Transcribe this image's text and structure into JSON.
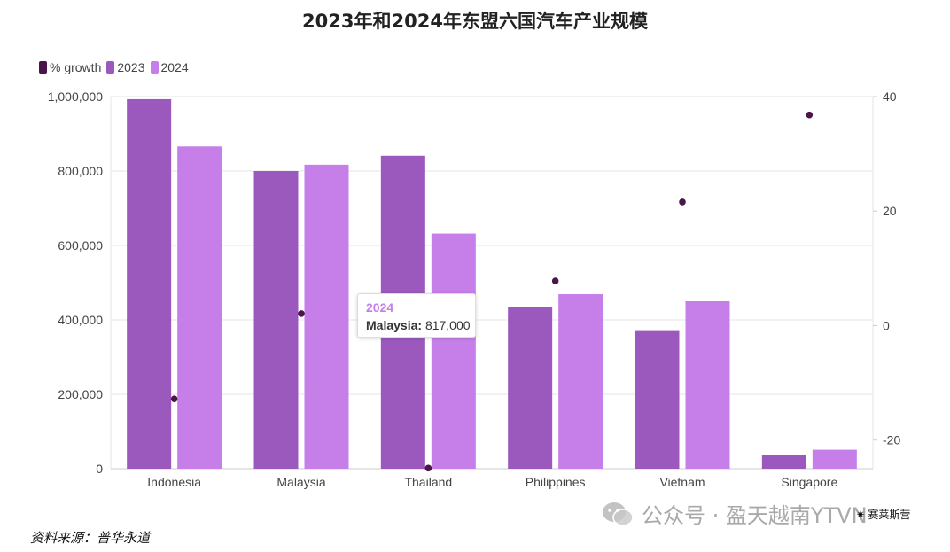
{
  "chart_data": {
    "type": "bar",
    "title": "2023年和2024年东盟六国汽车产业规模",
    "categories": [
      "Indonesia",
      "Malaysia",
      "Thailand",
      "Philippines",
      "Vietnam",
      "Singapore"
    ],
    "series": [
      {
        "name": "2023",
        "axis": "left",
        "color": "#9b59bd",
        "values": [
          993000,
          800000,
          841000,
          435000,
          370000,
          38000
        ]
      },
      {
        "name": "2024",
        "axis": "left",
        "color": "#c67fe8",
        "values": [
          866000,
          817000,
          632000,
          469000,
          450000,
          51000
        ]
      },
      {
        "name": "% growth",
        "axis": "right",
        "mark": "point",
        "color": "#4a1548",
        "values": [
          -12.8,
          2.1,
          -24.9,
          7.8,
          21.6,
          36.8
        ]
      }
    ],
    "left_axis": {
      "ylim": [
        0,
        1000000
      ],
      "ticks": [
        "0",
        "200,000",
        "400,000",
        "600,000",
        "800,000",
        "1,000,000"
      ],
      "tick_values": [
        0,
        200000,
        400000,
        600000,
        800000,
        1000000
      ]
    },
    "right_axis": {
      "ylim": [
        -25,
        40
      ],
      "ticks": [
        "-20",
        "0",
        "20",
        "40"
      ],
      "tick_values": [
        -20,
        0,
        20,
        40
      ]
    },
    "grid": true,
    "legend_position": "top-left",
    "tooltip": {
      "title": "2024",
      "label": "Malaysia:",
      "value": "817,000"
    }
  },
  "footer": {
    "source": "资料来源：普华永道",
    "watermark": "公众号 · 盈天越南YTVN",
    "brand": "✷ 赛莱斯营"
  }
}
